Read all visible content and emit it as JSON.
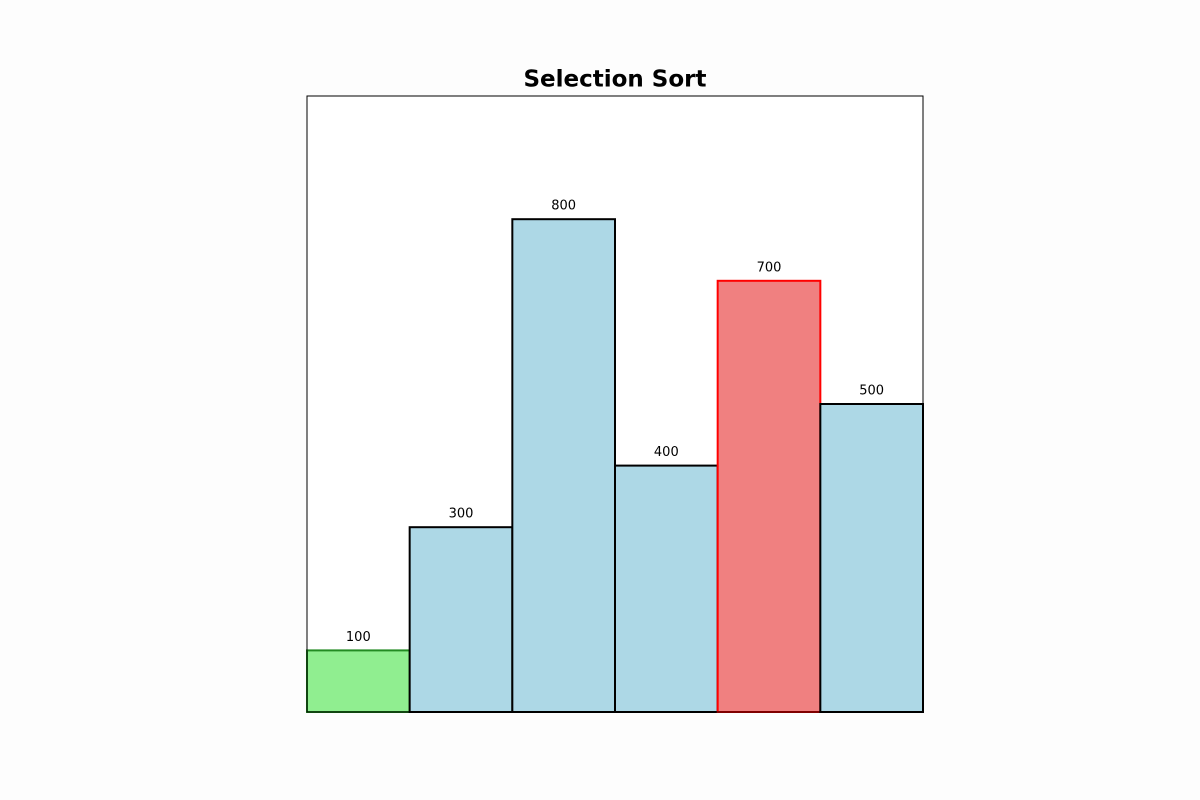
{
  "chart_data": {
    "type": "bar",
    "title": "Selection Sort",
    "values": [
      100,
      300,
      800,
      400,
      700,
      500
    ],
    "colors": [
      "#90ee90",
      "#add8e6",
      "#add8e6",
      "#add8e6",
      "#f08080",
      "#add8e6"
    ],
    "edgecolors": [
      "#228b22",
      "#000000",
      "#000000",
      "#000000",
      "#ff0000",
      "#000000"
    ],
    "ylim": [
      0,
      1000
    ]
  }
}
